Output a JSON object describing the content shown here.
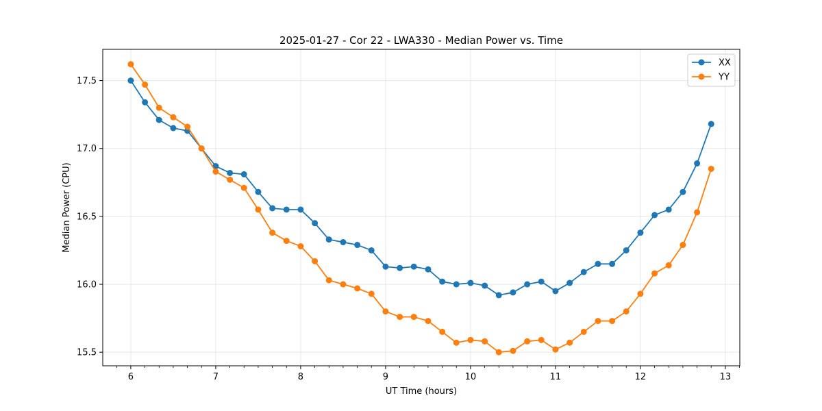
{
  "chart_data": {
    "type": "line",
    "title": "2025-01-27 - Cor 22 - LWA330 - Median Power vs. Time",
    "xlabel": "UT Time (hours)",
    "ylabel": "Median Power (CPU)",
    "xlim": [
      5.67,
      13.17
    ],
    "ylim": [
      15.4,
      17.73
    ],
    "xticks": [
      6,
      7,
      8,
      9,
      10,
      11,
      12,
      13
    ],
    "xtick_labels": [
      "6",
      "7",
      "8",
      "9",
      "10",
      "11",
      "12",
      "13"
    ],
    "yticks": [
      15.5,
      16.0,
      16.5,
      17.0,
      17.5
    ],
    "ytick_labels": [
      "15.5",
      "16.0",
      "16.5",
      "17.0",
      "17.5"
    ],
    "grid": true,
    "legend_position": "top-right",
    "x": [
      6.0,
      6.167,
      6.333,
      6.5,
      6.667,
      6.833,
      7.0,
      7.167,
      7.333,
      7.5,
      7.667,
      7.833,
      8.0,
      8.167,
      8.333,
      8.5,
      8.667,
      8.833,
      9.0,
      9.167,
      9.333,
      9.5,
      9.667,
      9.833,
      10.0,
      10.167,
      10.333,
      10.5,
      10.667,
      10.833,
      11.0,
      11.167,
      11.333,
      11.5,
      11.667,
      11.833,
      12.0,
      12.167,
      12.333,
      12.5,
      12.667,
      12.833
    ],
    "series": [
      {
        "name": "XX",
        "color": "#1f77b4",
        "values": [
          17.5,
          17.34,
          17.21,
          17.15,
          17.13,
          17.0,
          16.87,
          16.82,
          16.81,
          16.68,
          16.56,
          16.55,
          16.55,
          16.45,
          16.33,
          16.31,
          16.29,
          16.25,
          16.13,
          16.12,
          16.13,
          16.11,
          16.02,
          16.0,
          16.01,
          15.99,
          15.92,
          15.94,
          16.0,
          16.02,
          15.95,
          16.01,
          16.09,
          16.15,
          16.15,
          16.25,
          16.38,
          16.51,
          16.55,
          16.68,
          16.89,
          17.18
        ]
      },
      {
        "name": "YY",
        "color": "#ff7f0e",
        "values": [
          17.62,
          17.47,
          17.3,
          17.23,
          17.16,
          17.0,
          16.83,
          16.77,
          16.71,
          16.55,
          16.38,
          16.32,
          16.28,
          16.17,
          16.03,
          16.0,
          15.97,
          15.93,
          15.8,
          15.76,
          15.76,
          15.73,
          15.65,
          15.57,
          15.59,
          15.58,
          15.5,
          15.51,
          15.58,
          15.59,
          15.52,
          15.57,
          15.65,
          15.73,
          15.73,
          15.8,
          15.93,
          16.08,
          16.14,
          16.29,
          16.53,
          16.85
        ]
      }
    ]
  }
}
